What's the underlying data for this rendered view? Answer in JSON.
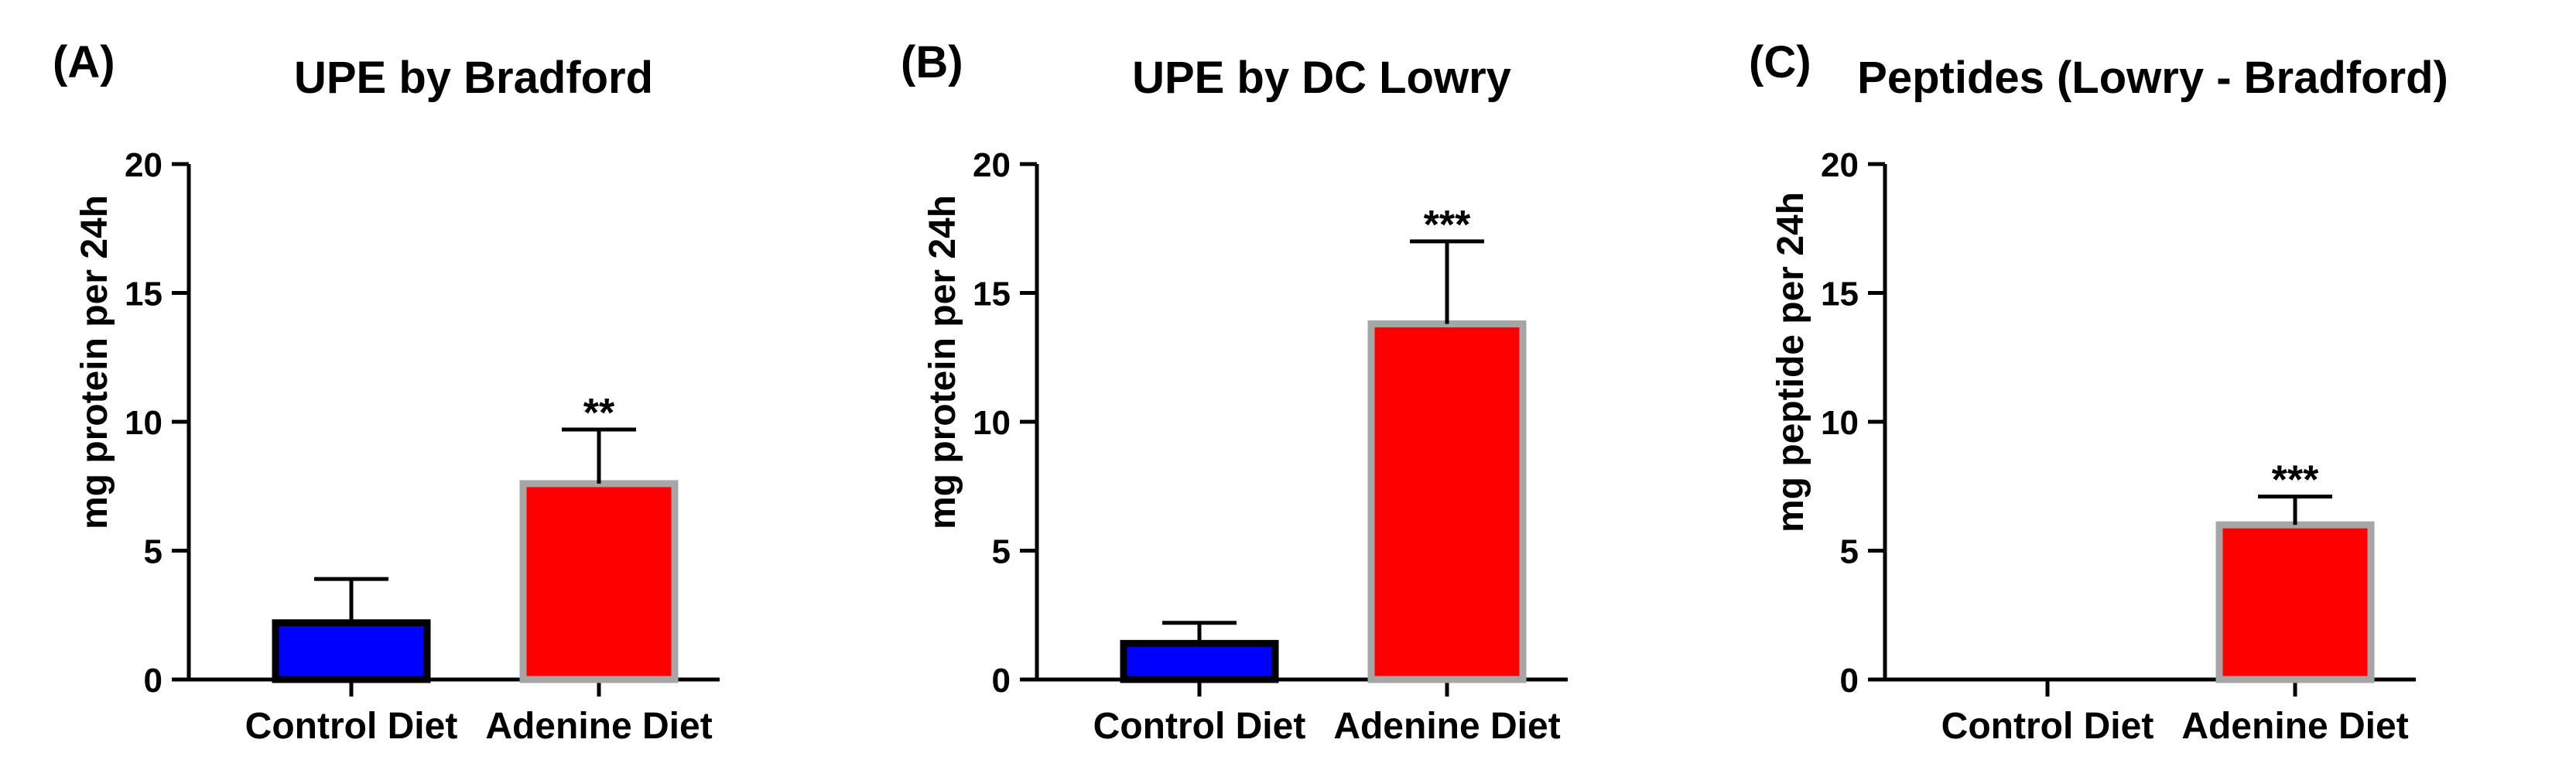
{
  "chart_data": [
    {
      "panel": "(A)",
      "type": "bar",
      "title": "UPE by Bradford",
      "xlabel": "",
      "ylabel": "mg protein per 24h",
      "ylim": [
        0,
        20
      ],
      "yticks": [
        0,
        5,
        10,
        15,
        20
      ],
      "categories": [
        "Control Diet",
        "Adenine Diet"
      ],
      "values": [
        2.2,
        7.6
      ],
      "errors": [
        1.7,
        2.1
      ],
      "significance": [
        "",
        "**"
      ],
      "bar_colors": [
        "#0000ff",
        "#ff0000"
      ],
      "bar_edge_colors": [
        "#000000",
        "#a6a6a6"
      ]
    },
    {
      "panel": "(B)",
      "type": "bar",
      "title": "UPE by DC Lowry",
      "xlabel": "",
      "ylabel": "mg protein per 24h",
      "ylim": [
        0,
        20
      ],
      "yticks": [
        0,
        5,
        10,
        15,
        20
      ],
      "categories": [
        "Control Diet",
        "Adenine Diet"
      ],
      "values": [
        1.4,
        13.8
      ],
      "errors": [
        0.8,
        3.2
      ],
      "significance": [
        "",
        "***"
      ],
      "bar_colors": [
        "#0000ff",
        "#ff0000"
      ],
      "bar_edge_colors": [
        "#000000",
        "#a6a6a6"
      ]
    },
    {
      "panel": "(C)",
      "type": "bar",
      "title": "Peptides  (Lowry - Bradford)",
      "xlabel": "",
      "ylabel": "mg peptide per 24h",
      "ylim": [
        0,
        20
      ],
      "yticks": [
        0,
        5,
        10,
        15,
        20
      ],
      "categories": [
        "Control Diet",
        "Adenine Diet"
      ],
      "values": [
        0,
        6.0
      ],
      "errors": [
        0,
        1.1
      ],
      "significance": [
        "",
        "***"
      ],
      "bar_colors": [
        "#0000ff",
        "#ff0000"
      ],
      "bar_edge_colors": [
        "#000000",
        "#a6a6a6"
      ]
    }
  ]
}
